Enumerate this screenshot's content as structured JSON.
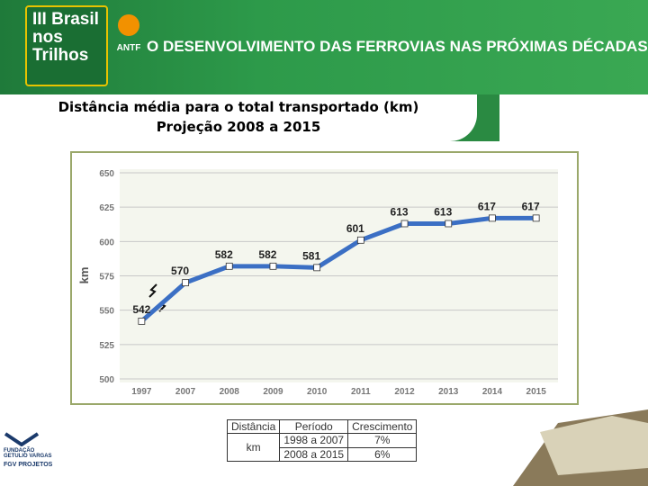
{
  "header": {
    "event_logo": [
      "III Brasil",
      "nos",
      "Trilhos"
    ],
    "antf_logo": "ANTF",
    "title": "O DESENVOLVIMENTO DAS FERROVIAS NAS PRÓXIMAS DÉCADAS"
  },
  "slide_title": [
    "Distância média para o total transportado (km)",
    "Projeção 2008 a 2015"
  ],
  "chart_data": {
    "type": "line",
    "ylabel": "km",
    "categories": [
      "1997",
      "2007",
      "2008",
      "2009",
      "2010",
      "2011",
      "2012",
      "2013",
      "2014",
      "2015"
    ],
    "values": [
      542,
      570,
      582,
      582,
      581,
      601,
      613,
      613,
      617,
      617
    ],
    "color": "#3b6fc4",
    "ylim": [
      500,
      650
    ],
    "yticks": [
      500,
      525,
      550,
      575,
      600,
      625,
      650
    ],
    "grid": true
  },
  "table": {
    "header": [
      "Distância",
      "Período",
      "Crescimento"
    ],
    "unit": "km",
    "rows": [
      [
        "1998 a 2007",
        "7%"
      ],
      [
        "2008 a 2015",
        "6%"
      ]
    ]
  },
  "footer_logo": [
    "FUNDAÇÃO",
    "GETULIO VARGAS",
    "FGV PROJETOS"
  ]
}
